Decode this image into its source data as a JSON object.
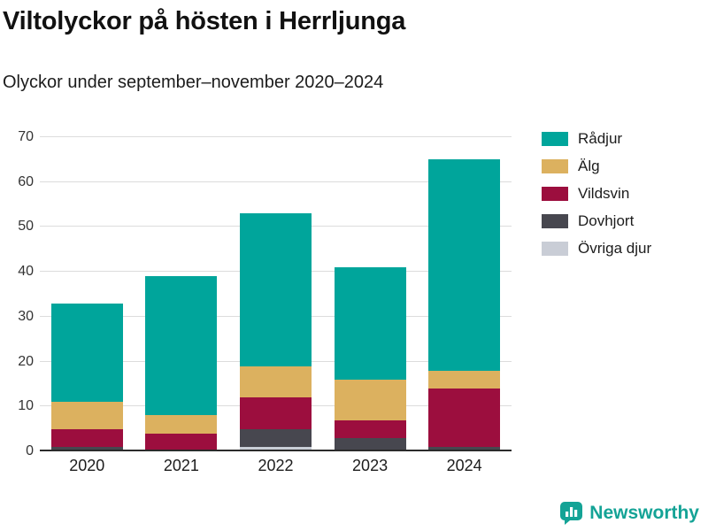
{
  "chart_data": {
    "type": "bar",
    "stacked": true,
    "title": "Viltolyckor på hösten i Herrljunga",
    "subtitle": "Olyckor under september–november 2020–2024",
    "categories": [
      "2020",
      "2021",
      "2022",
      "2023",
      "2024"
    ],
    "series": [
      {
        "name": "Övriga djur",
        "color": "#c9cdd6",
        "values": [
          0,
          0,
          1,
          0,
          0
        ]
      },
      {
        "name": "Dovhjort",
        "color": "#47474f",
        "values": [
          1,
          0,
          4,
          3,
          1
        ]
      },
      {
        "name": "Vildsvin",
        "color": "#9c0e3e",
        "values": [
          4,
          4,
          7,
          4,
          13
        ]
      },
      {
        "name": "Älg",
        "color": "#dcb15f",
        "values": [
          6,
          4,
          7,
          9,
          4
        ]
      },
      {
        "name": "Rådjur",
        "color": "#00a59b",
        "values": [
          22,
          31,
          34,
          25,
          47
        ]
      }
    ],
    "totals": [
      33,
      39,
      53,
      41,
      65
    ],
    "ylim": [
      0,
      70
    ],
    "yticks": [
      0,
      10,
      20,
      30,
      40,
      50,
      60,
      70
    ],
    "legend_order": [
      "Rådjur",
      "Älg",
      "Vildsvin",
      "Dovhjort",
      "Övriga djur"
    ],
    "legend_position": "right",
    "grid": "horizontal"
  },
  "footer": {
    "brand": "Newsworthy",
    "brand_color": "#14a396",
    "logo_icon": "bar-chart-speech-bubble-icon"
  },
  "colors": {
    "background": "#ffffff",
    "gridline": "#dcdcdc",
    "axis": "#2b2b2b"
  }
}
